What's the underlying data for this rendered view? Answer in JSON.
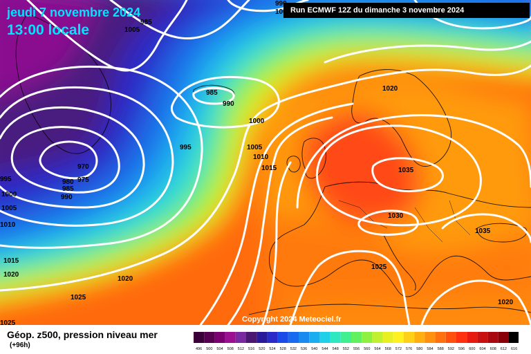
{
  "header": {
    "date": "jeudi 7 novembre 2024",
    "time": "13:00 locale",
    "run": "Run ECMWF 12Z du dimanche 3 novembre 2024"
  },
  "copyright": "Copyright 2024 Meteociel.fr",
  "footer": {
    "field": "Géop. z500, pression niveau mer",
    "lead": "(+96h)"
  },
  "colors": {
    "isobar": "#ffffff",
    "coast": "#000000",
    "header_text": "#00e5ff"
  },
  "isobar_labels": [
    "990",
    "985",
    "1005",
    "1005",
    "985",
    "990",
    "1000",
    "995",
    "1005",
    "1010",
    "1015",
    "970",
    "975",
    "980",
    "985",
    "990",
    "995",
    "1000",
    "1005",
    "1010",
    "1020",
    "1035",
    "1030",
    "1035",
    "1025",
    "1015",
    "1020",
    "1020",
    "1025",
    "1025",
    "1020"
  ],
  "scale": {
    "ticks": [
      "496",
      "500",
      "504",
      "508",
      "512",
      "516",
      "520",
      "524",
      "528",
      "532",
      "536",
      "540",
      "544",
      "548",
      "552",
      "556",
      "560",
      "564",
      "568",
      "572",
      "576",
      "580",
      "584",
      "588",
      "592",
      "596",
      "600",
      "604",
      "608",
      "612",
      "616"
    ],
    "colors": [
      "#3a0038",
      "#560050",
      "#7a0070",
      "#9a1090",
      "#7a2aa0",
      "#4a1870",
      "#2a1a9a",
      "#2a2ac8",
      "#1a4ae8",
      "#1a6af0",
      "#1a8af0",
      "#1aaef0",
      "#20d0e8",
      "#30e8c0",
      "#40f090",
      "#60f060",
      "#90f040",
      "#c0f030",
      "#e8f020",
      "#fff020",
      "#ffd018",
      "#ffb010",
      "#ff9010",
      "#ff7010",
      "#ff5010",
      "#ff3010",
      "#e81a10",
      "#c81010",
      "#a80810",
      "#880008",
      "#000000"
    ]
  }
}
